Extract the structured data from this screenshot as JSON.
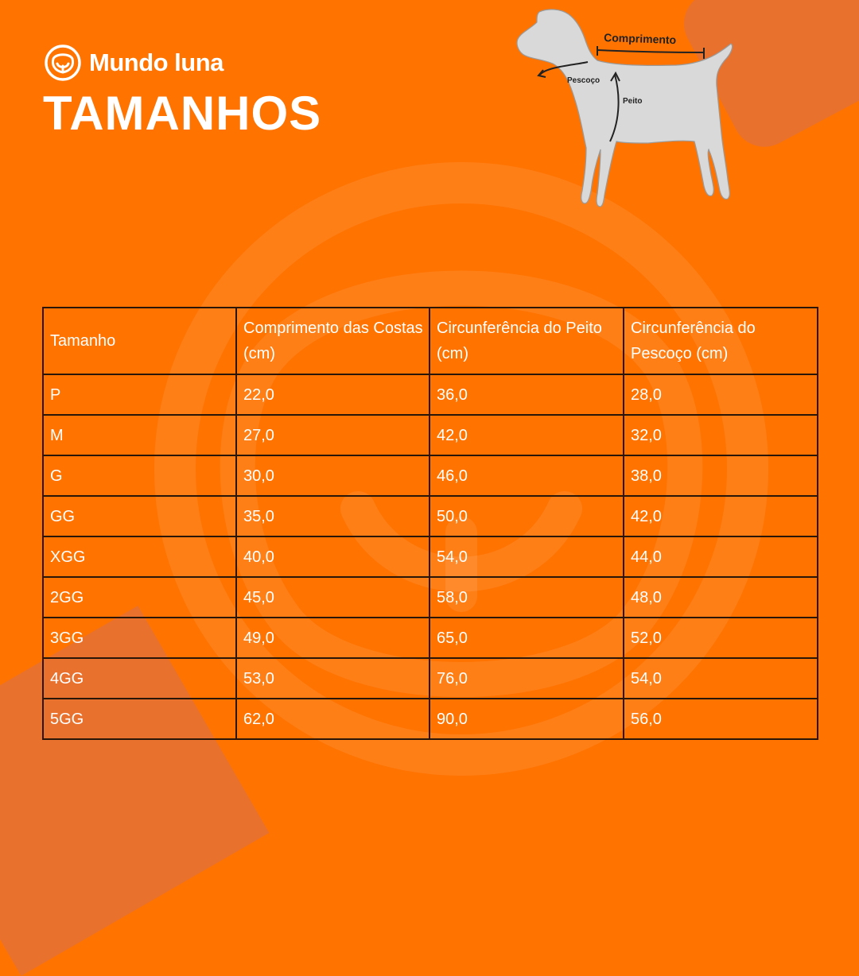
{
  "brand": {
    "name": "Mundo luna",
    "logo_icon": "dog-face-icon"
  },
  "title": "TAMANHOS",
  "illustration": {
    "icon": "dog-silhouette-icon",
    "labels": {
      "length": "Comprimento",
      "neck": "Pescoço",
      "chest": "Peito"
    }
  },
  "table": {
    "headers": [
      "Tamanho",
      "Comprimento das Costas (cm)",
      "Circunferência do Peito (cm)",
      "Circunferência do Pescoço (cm)"
    ],
    "rows": [
      [
        "P",
        "22,0",
        "36,0",
        "28,0"
      ],
      [
        "M",
        "27,0",
        "42,0",
        "32,0"
      ],
      [
        "G",
        "30,0",
        "46,0",
        "38,0"
      ],
      [
        "GG",
        "35,0",
        "50,0",
        "42,0"
      ],
      [
        "XGG",
        "40,0",
        "54,0",
        "44,0"
      ],
      [
        "2GG",
        "45,0",
        "58,0",
        "48,0"
      ],
      [
        "3GG",
        "49,0",
        "65,0",
        "52,0"
      ],
      [
        "4GG",
        "53,0",
        "76,0",
        "54,0"
      ],
      [
        "5GG",
        "62,0",
        "90,0",
        "56,0"
      ]
    ]
  },
  "colors": {
    "background": "#ff7300",
    "accent_shape": "#e8712e",
    "text": "#ffffff",
    "grid": "#2a1608"
  }
}
